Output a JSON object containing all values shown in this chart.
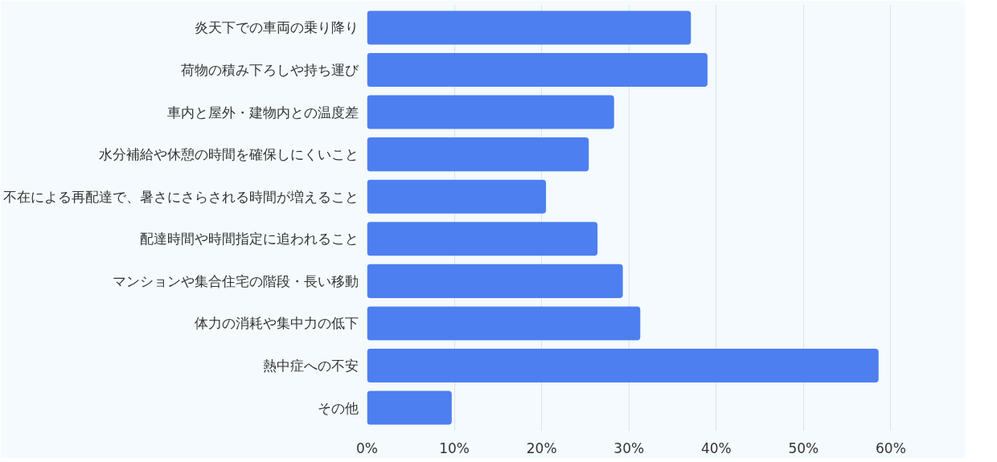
{
  "chart_data": {
    "type": "bar",
    "orientation": "horizontal",
    "categories": [
      "炎天下での車両の乗り降り",
      "荷物の積み下ろしや持ち運び",
      "車内と屋外・建物内との温度差",
      "水分補給や休憩の時間を確保しにくいこと",
      "不在による再配達で、暑さにさらされる時間が増えること",
      "配達時間や時間指定に追われること",
      "マンションや集合住宅の階段・長い移動",
      "体力の消耗や集中力の低下",
      "熱中症への不安",
      "その他"
    ],
    "values": [
      37.1,
      39.0,
      28.3,
      25.4,
      20.5,
      26.4,
      29.3,
      31.3,
      58.6,
      9.7
    ],
    "color": "#4d7ff0",
    "xlim": [
      0,
      63
    ],
    "xticks": [
      {
        "value": 0,
        "label": "0%"
      },
      {
        "value": 10,
        "label": "10%"
      },
      {
        "value": 20,
        "label": "20%"
      },
      {
        "value": 30,
        "label": "30%"
      },
      {
        "value": 40,
        "label": "40%"
      },
      {
        "value": 50,
        "label": "50%"
      },
      {
        "value": 60,
        "label": "60%"
      }
    ],
    "grid": "x"
  }
}
